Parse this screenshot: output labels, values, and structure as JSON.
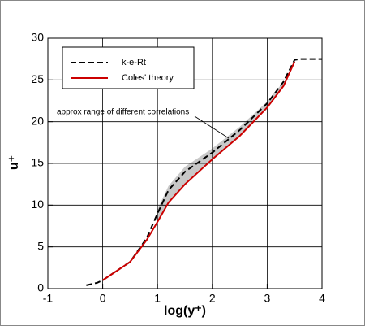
{
  "chart_data": {
    "type": "line",
    "xlabel": "log(y⁺)",
    "ylabel": "u⁺",
    "xlim": [
      -1,
      4
    ],
    "ylim": [
      0,
      30
    ],
    "xticks": [
      -1,
      0,
      1,
      2,
      3,
      4
    ],
    "yticks": [
      0,
      5,
      10,
      15,
      20,
      25,
      30
    ],
    "grid": true,
    "legend": "upper left",
    "series": [
      {
        "name": "k-e-Rt",
        "color": "#000000",
        "dash": true,
        "x": [
          -0.3,
          -0.1,
          0,
          0.5,
          0.8,
          1.0,
          1.2,
          1.5,
          2.0,
          2.5,
          3.0,
          3.3,
          3.5,
          3.6,
          4.0
        ],
        "values": [
          0.4,
          0.7,
          1.0,
          3.2,
          6.0,
          9.0,
          11.8,
          14.0,
          16.3,
          19.0,
          22.2,
          24.8,
          27.4,
          27.5,
          27.5
        ]
      },
      {
        "name": "Coles' theory",
        "color": "#cc0000",
        "dash": false,
        "x": [
          0,
          0.5,
          0.8,
          1.0,
          1.2,
          1.5,
          2.0,
          2.5,
          3.0,
          3.3,
          3.5
        ],
        "values": [
          1.0,
          3.2,
          5.8,
          8.0,
          10.3,
          12.5,
          15.5,
          18.3,
          21.7,
          24.3,
          27.2
        ]
      }
    ],
    "band": {
      "label": "approx range of different correlations",
      "color": "#c8c8c8",
      "x": [
        1.0,
        1.2,
        1.5,
        2.0,
        2.5,
        3.0,
        3.3
      ],
      "lower": [
        8.2,
        10.4,
        12.6,
        15.5,
        18.4,
        21.8,
        24.4
      ],
      "upper": [
        9.5,
        12.3,
        14.6,
        16.8,
        19.4,
        22.4,
        24.8
      ]
    }
  }
}
